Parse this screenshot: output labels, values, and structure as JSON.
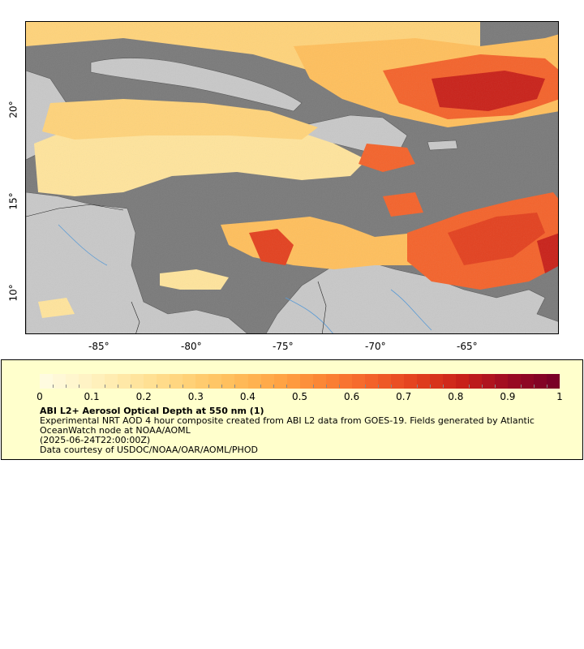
{
  "map": {
    "x_ticks": [
      "-85°",
      "-80°",
      "-75°",
      "-70°",
      "-65°"
    ],
    "y_ticks": [
      "20°",
      "15°",
      "10°"
    ],
    "colors": {
      "ocean": "#7a7a7a",
      "land": "#c8c8c8",
      "rivers": "#5b9bd5",
      "borders": "#9a9a9a",
      "coast": "#555555"
    }
  },
  "legend": {
    "colorbar_ticks": [
      "0",
      "0.1",
      "0.2",
      "0.3",
      "0.4",
      "0.5",
      "0.6",
      "0.7",
      "0.8",
      "0.9",
      "1"
    ],
    "colorbar_colors": [
      "#fffbe0",
      "#fff2c0",
      "#ffe49c",
      "#ffd37a",
      "#ffbf5c",
      "#ffa545",
      "#fb8535",
      "#f4632b",
      "#e3411f",
      "#c92119",
      "#9e0b22",
      "#7a0026"
    ],
    "title": "ABI L2+ Aerosol Optical Depth at 550 nm (1)",
    "line1": "Experimental NRT AOD 4 hour composite created from ABI L2 data from GOES-19. Fields generated by Atlantic OceanWatch node at NOAA/AOML",
    "line2": "(2025-06-24T22:00:00Z)",
    "line3": "Data courtesy of USDOC/NOAA/OAR/AOML/PHOD"
  }
}
